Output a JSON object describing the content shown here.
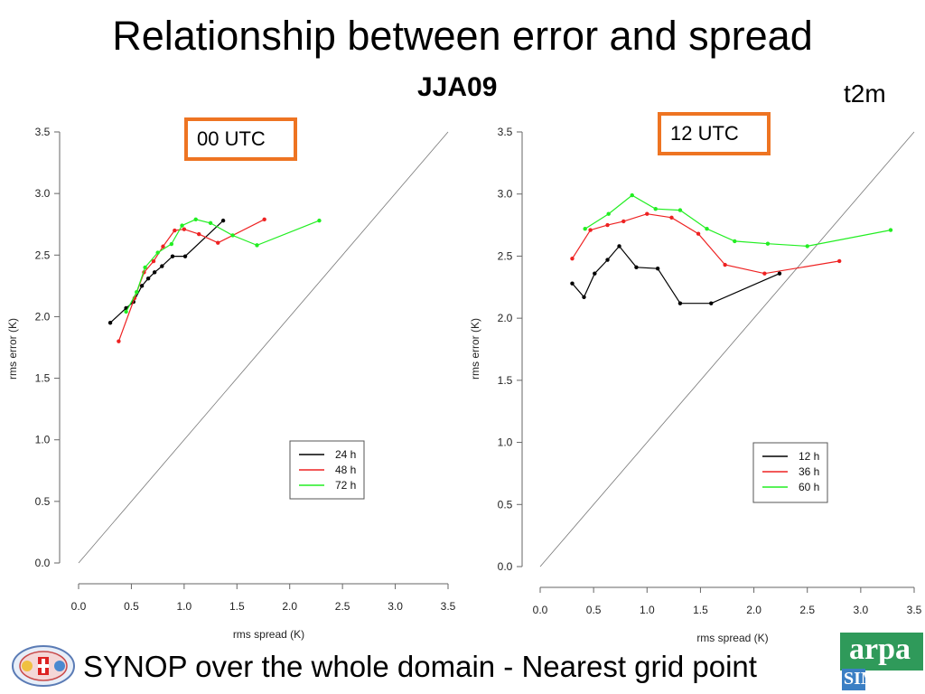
{
  "header": {
    "title": "Relationship between error and spread",
    "subtitle": "JJA09",
    "variable": "t2m"
  },
  "footer": {
    "text": "SYNOP over the whole domain - Nearest grid point"
  },
  "logos": {
    "left": "regional-seals-logo",
    "right_text": "arpa",
    "right_sub": "SIM"
  },
  "colors": {
    "black": "#000000",
    "red": "#ee2222",
    "green": "#22ee22",
    "box_border": "#ee7422",
    "diagonal": "#777777"
  },
  "chart_data": [
    {
      "type": "line",
      "label": "00 UTC",
      "xlabel": "rms spread (K)",
      "ylabel": "rms error (K)",
      "xlim": [
        0,
        3.5
      ],
      "ylim": [
        0,
        3.5
      ],
      "xticks": [
        "0.0",
        "0.5",
        "1.0",
        "1.5",
        "2.0",
        "2.5",
        "3.0",
        "3.5"
      ],
      "yticks": [
        "0.0",
        "0.5",
        "1.0",
        "1.5",
        "2.0",
        "2.5",
        "3.0",
        "3.5"
      ],
      "reference_line": "y = x",
      "legend_position": "lower-right",
      "series": [
        {
          "name": "24 h",
          "color": "#000000",
          "x": [
            0.3,
            0.45,
            0.52,
            0.6,
            0.66,
            0.72,
            0.79,
            0.89,
            1.01,
            1.37
          ],
          "y": [
            1.95,
            2.07,
            2.12,
            2.25,
            2.31,
            2.36,
            2.41,
            2.49,
            2.49,
            2.78
          ]
        },
        {
          "name": "48 h",
          "color": "#ee2222",
          "x": [
            0.38,
            0.53,
            0.62,
            0.71,
            0.8,
            0.91,
            1.0,
            1.14,
            1.32,
            1.76
          ],
          "y": [
            1.8,
            2.15,
            2.36,
            2.45,
            2.57,
            2.7,
            2.71,
            2.67,
            2.6,
            2.79
          ]
        },
        {
          "name": "72 h",
          "color": "#22ee22",
          "x": [
            0.45,
            0.55,
            0.63,
            0.75,
            0.88,
            0.98,
            1.11,
            1.25,
            1.46,
            1.69,
            2.28
          ],
          "y": [
            2.04,
            2.2,
            2.4,
            2.52,
            2.59,
            2.74,
            2.79,
            2.76,
            2.66,
            2.58,
            2.78
          ]
        }
      ]
    },
    {
      "type": "line",
      "label": "12 UTC",
      "xlabel": "rms spread (K)",
      "ylabel": "rms error (K)",
      "xlim": [
        0,
        3.5
      ],
      "ylim": [
        0,
        3.5
      ],
      "xticks": [
        "0.0",
        "0.5",
        "1.0",
        "1.5",
        "2.0",
        "2.5",
        "3.0",
        "3.5"
      ],
      "yticks": [
        "0.0",
        "0.5",
        "1.0",
        "1.5",
        "2.0",
        "2.5",
        "3.0",
        "3.5"
      ],
      "reference_line": "y = x",
      "legend_position": "lower-right",
      "series": [
        {
          "name": "12 h",
          "color": "#000000",
          "x": [
            0.3,
            0.41,
            0.51,
            0.63,
            0.74,
            0.9,
            1.1,
            1.31,
            1.6,
            2.24
          ],
          "y": [
            2.28,
            2.17,
            2.36,
            2.47,
            2.58,
            2.41,
            2.4,
            2.12,
            2.12,
            2.36
          ]
        },
        {
          "name": "36 h",
          "color": "#ee2222",
          "x": [
            0.3,
            0.47,
            0.63,
            0.78,
            1.0,
            1.23,
            1.48,
            1.73,
            2.1,
            2.8
          ],
          "y": [
            2.48,
            2.71,
            2.75,
            2.78,
            2.84,
            2.81,
            2.68,
            2.43,
            2.36,
            2.46
          ]
        },
        {
          "name": "60 h",
          "color": "#22ee22",
          "x": [
            0.42,
            0.64,
            0.86,
            1.08,
            1.31,
            1.56,
            1.82,
            2.13,
            2.5,
            3.28
          ],
          "y": [
            2.72,
            2.84,
            2.99,
            2.88,
            2.87,
            2.72,
            2.62,
            2.6,
            2.58,
            2.71
          ]
        }
      ]
    }
  ]
}
